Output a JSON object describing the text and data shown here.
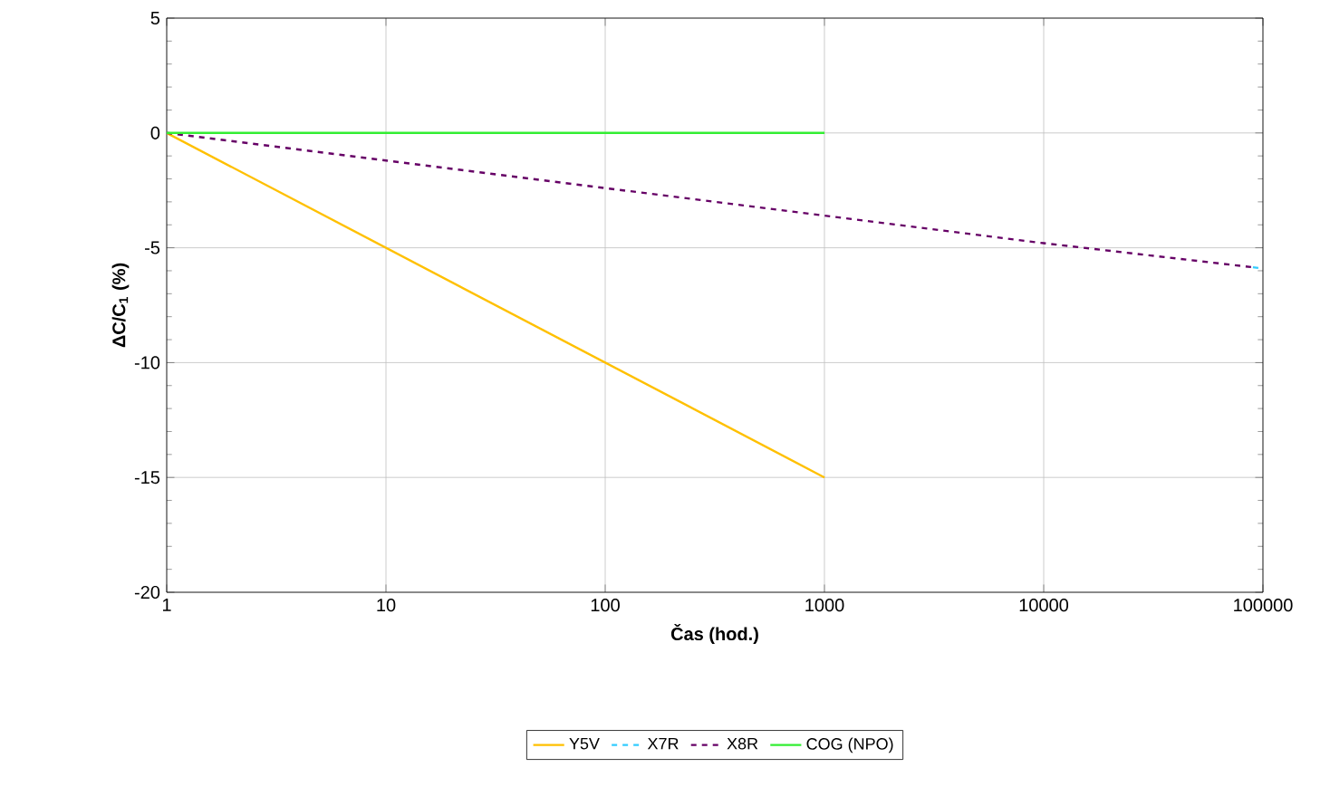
{
  "chart_data": {
    "type": "line",
    "xlabel": "Čas (hod.)",
    "ylabel": "ΔC/C$_{1}$ (%)",
    "log": "x",
    "xlim": [
      1,
      100000
    ],
    "ylim": [
      -20,
      5
    ],
    "xticks": [
      1,
      10,
      100,
      1000,
      10000,
      100000
    ],
    "yticks": [
      -20,
      -15,
      -10,
      -5,
      0,
      5
    ],
    "grid": true,
    "legend": "bottom",
    "marker": "none",
    "series": [
      {
        "name": "Y5V",
        "color": "#ffc000",
        "x": [
          1,
          1000
        ],
        "values": [
          0,
          -15
        ],
        "line_style": "solid"
      },
      {
        "name": "X7R",
        "color": "#33ccff",
        "x": [
          90000,
          100000
        ],
        "values": [
          -5.85,
          -5.9
        ],
        "line_style": "dashed"
      },
      {
        "name": "X8R",
        "color": "#660066",
        "x": [
          1,
          10,
          100,
          1000,
          10000,
          90000
        ],
        "values": [
          0,
          -1.2,
          -2.4,
          -3.6,
          -4.8,
          -5.85
        ],
        "line_style": "dashed"
      },
      {
        "name": "COG (NPO)",
        "color": "#33ee33",
        "x": [
          1,
          1000
        ],
        "values": [
          0,
          0
        ],
        "line_style": "solid"
      }
    ]
  }
}
